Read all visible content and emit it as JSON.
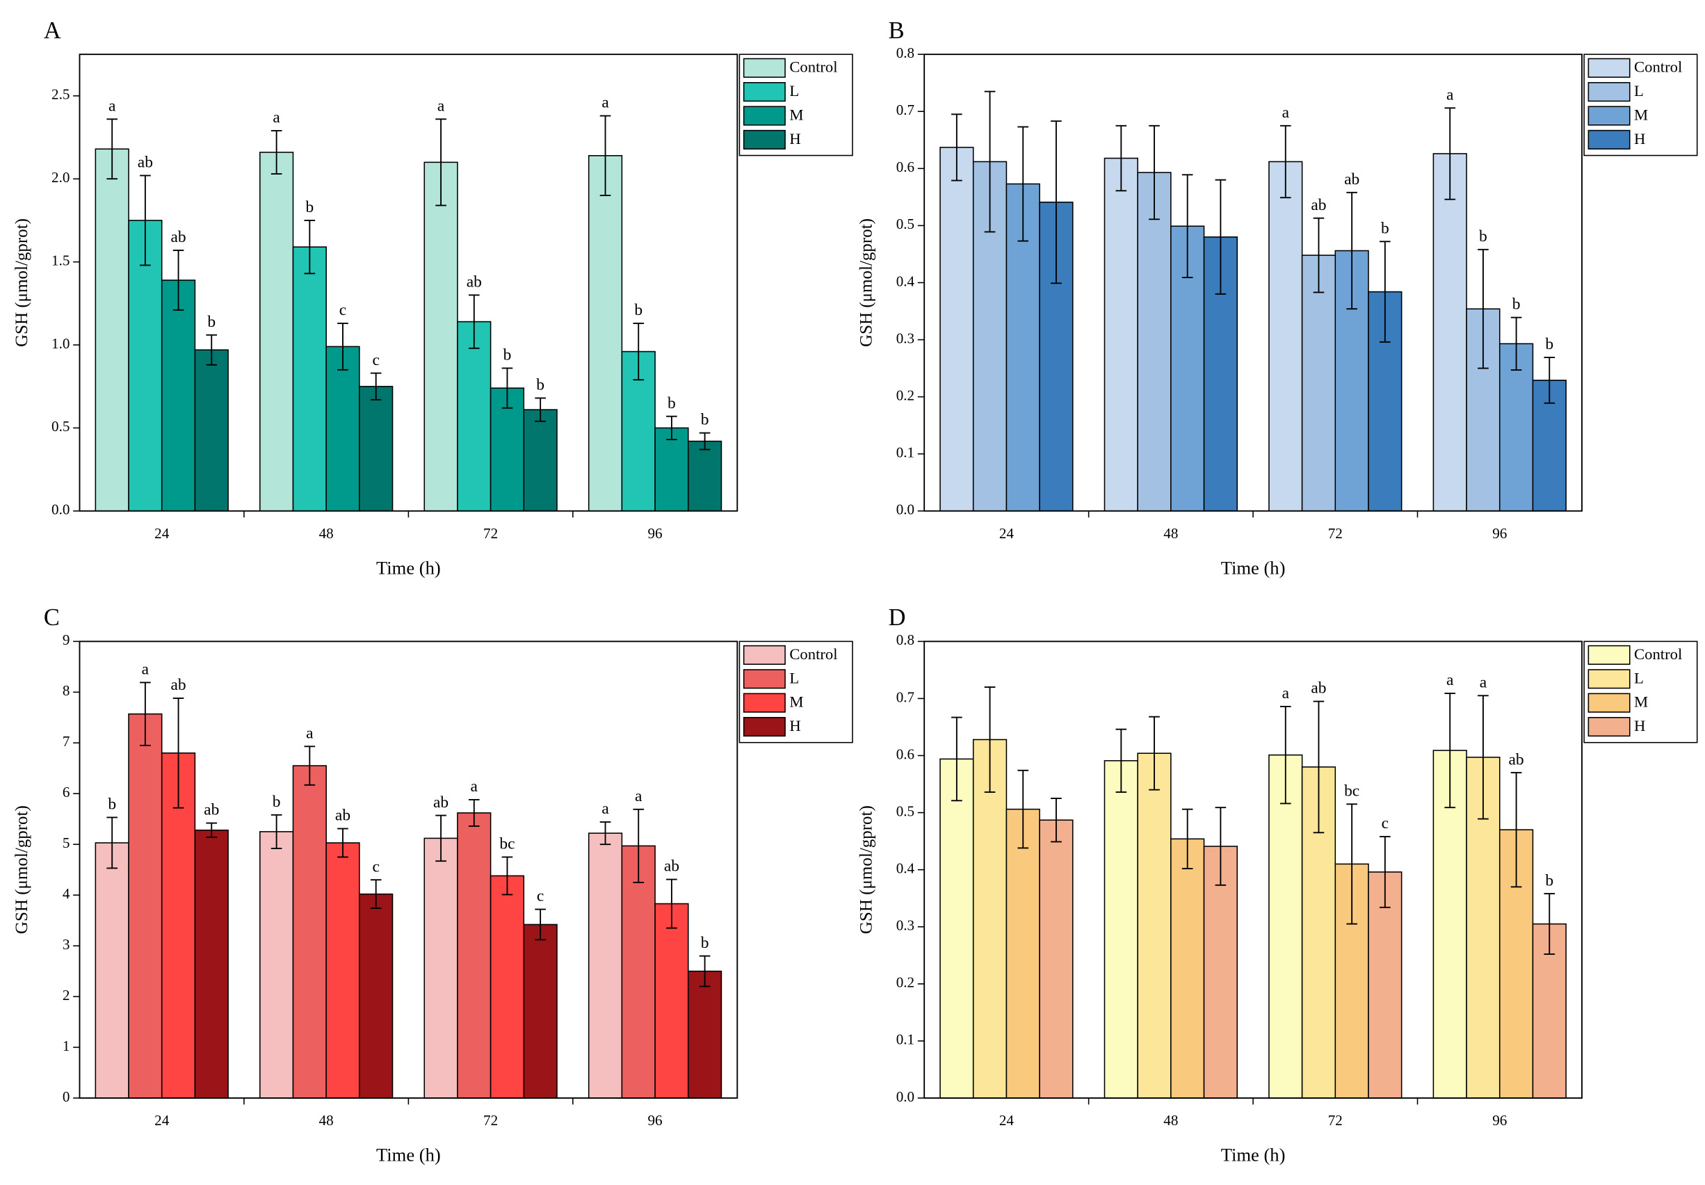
{
  "chart_data": [
    {
      "type": "bar",
      "panel_label": "A",
      "xlabel": "Time (h)",
      "ylabel": "GSH (μmol/gprot)",
      "legend": "outside upper right",
      "categories": [
        "24",
        "48",
        "72",
        "96"
      ],
      "ylim": [
        0,
        2.75
      ],
      "yticks": [
        {
          "value": 0,
          "label": "0.0"
        },
        0.5,
        {
          "value": 1,
          "label": "1.0"
        },
        1.5,
        {
          "value": 2,
          "label": "2.0"
        },
        2.5
      ],
      "series": [
        {
          "name": "Control",
          "color": "#b3e6d8",
          "values": [
            2.18,
            2.16,
            2.1,
            2.14
          ],
          "errors": [
            0.18,
            0.13,
            0.26,
            0.24
          ],
          "letters": [
            "a",
            "a",
            "a",
            "a"
          ]
        },
        {
          "name": "L",
          "color": "#22c4b3",
          "values": [
            1.75,
            1.59,
            1.14,
            0.96
          ],
          "errors": [
            0.27,
            0.16,
            0.16,
            0.17
          ],
          "letters": [
            "ab",
            "b",
            "ab",
            "b"
          ]
        },
        {
          "name": "M",
          "color": "#009a8c",
          "values": [
            1.39,
            0.99,
            0.74,
            0.5
          ],
          "errors": [
            0.18,
            0.14,
            0.12,
            0.07
          ],
          "letters": [
            "ab",
            "c",
            "b",
            "b"
          ]
        },
        {
          "name": "H",
          "color": "#00766c",
          "values": [
            0.97,
            0.75,
            0.61,
            0.42
          ],
          "errors": [
            0.09,
            0.08,
            0.07,
            0.05
          ],
          "letters": [
            "b",
            "c",
            "b",
            "b"
          ]
        }
      ]
    },
    {
      "type": "bar",
      "panel_label": "B",
      "xlabel": "Time (h)",
      "ylabel": "GSH (μmol/gprot)",
      "legend": "outside upper right",
      "categories": [
        "24",
        "48",
        "72",
        "96"
      ],
      "ylim": [
        0,
        0.8
      ],
      "yticks": [
        {
          "value": 0,
          "label": "0.0"
        },
        0.1,
        0.2,
        0.3,
        0.4,
        0.5,
        0.6,
        0.7,
        0.8
      ],
      "series": [
        {
          "name": "Control",
          "color": "#c6d9ee",
          "values": [
            0.637,
            0.618,
            0.612,
            0.626
          ],
          "errors": [
            0.058,
            0.057,
            0.063,
            0.08
          ],
          "letters": [
            null,
            null,
            "a",
            "a"
          ]
        },
        {
          "name": "L",
          "color": "#a3c2e3",
          "values": [
            0.612,
            0.593,
            0.448,
            0.354
          ],
          "errors": [
            0.123,
            0.082,
            0.065,
            0.104
          ],
          "letters": [
            null,
            null,
            "ab",
            "b"
          ]
        },
        {
          "name": "M",
          "color": "#6fa3d6",
          "values": [
            0.573,
            0.499,
            0.456,
            0.293
          ],
          "errors": [
            0.1,
            0.09,
            0.102,
            0.046
          ],
          "letters": [
            null,
            null,
            "ab",
            "b"
          ]
        },
        {
          "name": "H",
          "color": "#3a7cbc",
          "values": [
            0.541,
            0.48,
            0.384,
            0.229
          ],
          "errors": [
            0.142,
            0.1,
            0.088,
            0.04
          ],
          "letters": [
            null,
            null,
            "b",
            "b"
          ]
        }
      ]
    },
    {
      "type": "bar",
      "panel_label": "C",
      "xlabel": "Time (h)",
      "ylabel": "GSH (μmol/gprot)",
      "legend": "outside upper right",
      "categories": [
        "24",
        "48",
        "72",
        "96"
      ],
      "ylim": [
        0,
        9
      ],
      "yticks": [
        0,
        1,
        2,
        3,
        4,
        5,
        6,
        7,
        8,
        9
      ],
      "series": [
        {
          "name": "Control",
          "color": "#f5bfbf",
          "values": [
            5.03,
            5.25,
            5.12,
            5.22
          ],
          "errors": [
            0.5,
            0.33,
            0.45,
            0.22
          ],
          "letters": [
            "b",
            "b",
            "ab",
            "a"
          ]
        },
        {
          "name": "L",
          "color": "#ec6060",
          "values": [
            7.57,
            6.55,
            5.62,
            4.97
          ],
          "errors": [
            0.62,
            0.38,
            0.26,
            0.72
          ],
          "letters": [
            "a",
            "a",
            "a",
            "a"
          ]
        },
        {
          "name": "M",
          "color": "#ff4444",
          "values": [
            6.8,
            5.03,
            4.38,
            3.83
          ],
          "errors": [
            1.08,
            0.28,
            0.37,
            0.48
          ],
          "letters": [
            "ab",
            "ab",
            "bc",
            "ab"
          ]
        },
        {
          "name": "H",
          "color": "#9b1418",
          "values": [
            5.28,
            4.02,
            3.42,
            2.5
          ],
          "errors": [
            0.14,
            0.28,
            0.3,
            0.3
          ],
          "letters": [
            "ab",
            "c",
            "c",
            "b"
          ]
        }
      ]
    },
    {
      "type": "bar",
      "panel_label": "D",
      "xlabel": "Time (h)",
      "ylabel": "GSH (μmol/gprot)",
      "legend": "outside upper right",
      "categories": [
        "24",
        "48",
        "72",
        "96"
      ],
      "ylim": [
        0,
        0.8
      ],
      "yticks": [
        {
          "value": 0,
          "label": "0.0"
        },
        0.1,
        0.2,
        0.3,
        0.4,
        0.5,
        0.6,
        0.7,
        0.8
      ],
      "series": [
        {
          "name": "Control",
          "color": "#fcfcc0",
          "values": [
            0.594,
            0.591,
            0.601,
            0.609
          ],
          "errors": [
            0.073,
            0.055,
            0.085,
            0.1
          ],
          "letters": [
            null,
            null,
            "a",
            "a"
          ]
        },
        {
          "name": "L",
          "color": "#fbe69a",
          "values": [
            0.628,
            0.604,
            0.58,
            0.597
          ],
          "errors": [
            0.092,
            0.064,
            0.115,
            0.108
          ],
          "letters": [
            null,
            null,
            "ab",
            "a"
          ]
        },
        {
          "name": "M",
          "color": "#f9c97e",
          "values": [
            0.506,
            0.454,
            0.41,
            0.47
          ],
          "errors": [
            0.068,
            0.052,
            0.105,
            0.1
          ],
          "letters": [
            null,
            null,
            "bc",
            "ab"
          ]
        },
        {
          "name": "H",
          "color": "#f3b08e",
          "values": [
            0.487,
            0.441,
            0.396,
            0.305
          ],
          "errors": [
            0.038,
            0.068,
            0.062,
            0.053
          ],
          "letters": [
            null,
            null,
            "c",
            "b"
          ]
        }
      ]
    }
  ]
}
